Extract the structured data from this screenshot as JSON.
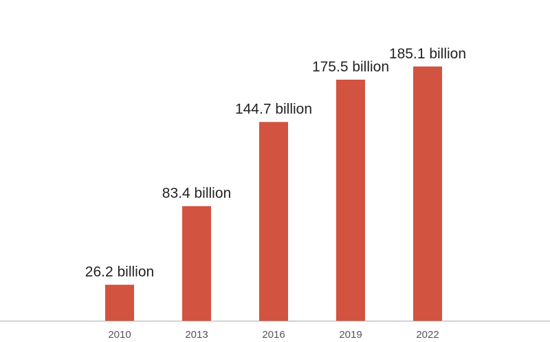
{
  "chart_data": {
    "type": "bar",
    "categories": [
      "2010",
      "2013",
      "2016",
      "2019",
      "2022"
    ],
    "values": [
      26.2,
      83.4,
      144.7,
      175.5,
      185.1
    ],
    "data_labels": [
      "26.2 billion",
      "83.4 billion",
      "144.7 billion",
      "175.5 billion",
      "185.1 billion"
    ],
    "title": "",
    "xlabel": "",
    "ylabel": "",
    "ylim": [
      0,
      210
    ],
    "grid": false,
    "legend": "none",
    "bar_color": "#d2533f",
    "axis_color": "#aaaaaa"
  }
}
